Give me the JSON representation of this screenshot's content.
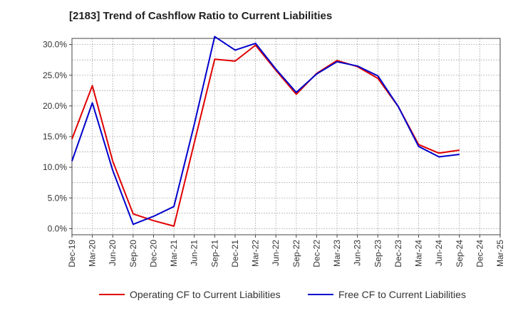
{
  "chart_data": {
    "type": "line",
    "title": "[2183]  Trend of Cashflow Ratio to Current Liabilities",
    "xlabel": "",
    "ylabel": "",
    "ylim": [
      -1,
      31
    ],
    "y_ticks": [
      "0.0%",
      "5.0%",
      "10.0%",
      "15.0%",
      "20.0%",
      "25.0%",
      "30.0%"
    ],
    "categories": [
      "Dec-19",
      "Mar-20",
      "Jun-20",
      "Sep-20",
      "Dec-20",
      "Mar-21",
      "Jun-21",
      "Sep-21",
      "Dec-21",
      "Mar-22",
      "Jun-22",
      "Sep-22",
      "Dec-22",
      "Mar-23",
      "Jun-23",
      "Sep-23",
      "Dec-23",
      "Mar-24",
      "Jun-24",
      "Sep-24",
      "Dec-24",
      "Mar-25"
    ],
    "grid": true,
    "legend_position": "bottom",
    "series": [
      {
        "name": "Operating CF to Current Liabilities",
        "color": "#e00000",
        "values": [
          14.6,
          23.3,
          11.0,
          2.4,
          1.3,
          0.4,
          14.0,
          27.6,
          27.3,
          29.9,
          25.8,
          21.9,
          25.3,
          27.4,
          26.4,
          24.5,
          19.9,
          13.7,
          12.3,
          12.8,
          null,
          null
        ]
      },
      {
        "name": "Free CF to Current Liabilities",
        "color": "#0000cc",
        "values": [
          11.0,
          20.5,
          9.5,
          0.7,
          2.0,
          3.6,
          17.0,
          31.3,
          29.1,
          30.2,
          26.0,
          22.2,
          25.2,
          27.2,
          26.5,
          24.9,
          19.9,
          13.4,
          11.7,
          12.1,
          null,
          null
        ]
      }
    ]
  }
}
